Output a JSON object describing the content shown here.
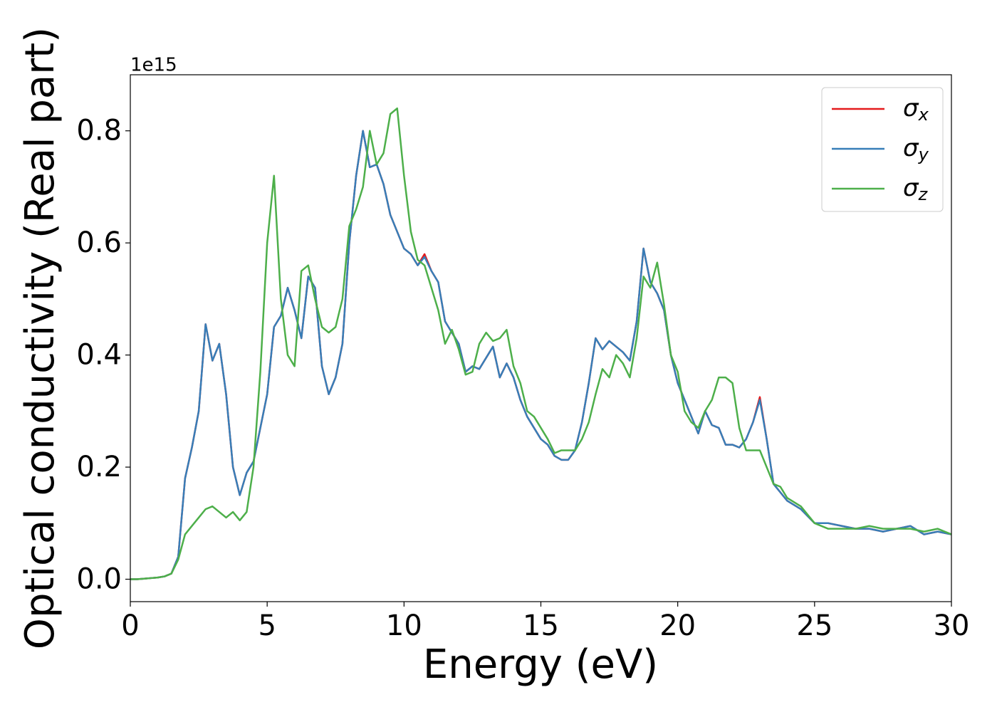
{
  "chart_data": {
    "type": "line",
    "xlabel": "Energy (eV)",
    "ylabel": "Optical conductivity (Real part)",
    "y_offset_label": "1e15",
    "xlim": [
      0,
      30
    ],
    "ylim": [
      -0.04,
      0.9
    ],
    "xticks": [
      0,
      5,
      10,
      15,
      20,
      25,
      30
    ],
    "yticks": [
      {
        "value": 0,
        "label": "0.0"
      },
      0.2,
      0.4,
      0.6,
      0.8
    ],
    "grid": false,
    "legend": "upper right",
    "x": [
      0,
      0.25,
      0.5,
      0.75,
      1,
      1.25,
      1.5,
      1.75,
      2,
      2.25,
      2.5,
      2.75,
      3,
      3.25,
      3.5,
      3.75,
      4,
      4.25,
      4.5,
      4.75,
      5,
      5.25,
      5.5,
      5.75,
      6,
      6.25,
      6.5,
      6.75,
      7,
      7.25,
      7.5,
      7.75,
      8,
      8.25,
      8.5,
      8.75,
      9,
      9.25,
      9.5,
      9.75,
      10,
      10.25,
      10.5,
      10.75,
      11,
      11.25,
      11.5,
      11.75,
      12,
      12.25,
      12.5,
      12.75,
      13,
      13.25,
      13.5,
      13.75,
      14,
      14.25,
      14.5,
      14.75,
      15,
      15.25,
      15.5,
      15.75,
      16,
      16.25,
      16.5,
      16.75,
      17,
      17.25,
      17.5,
      17.75,
      18,
      18.25,
      18.5,
      18.75,
      19,
      19.25,
      19.5,
      19.75,
      20,
      20.25,
      20.5,
      20.75,
      21,
      21.25,
      21.5,
      21.75,
      22,
      22.25,
      22.5,
      22.75,
      23,
      23.25,
      23.5,
      23.75,
      24,
      24.5,
      25,
      25.5,
      26,
      26.5,
      27,
      27.5,
      28,
      28.5,
      29,
      29.5,
      30
    ],
    "series": [
      {
        "name": "σx",
        "color": "#e41a1c",
        "values": [
          0,
          0,
          0.001,
          0.002,
          0.003,
          0.005,
          0.01,
          0.04,
          0.18,
          0.235,
          0.3,
          0.455,
          0.39,
          0.42,
          0.33,
          0.2,
          0.15,
          0.19,
          0.21,
          0.27,
          0.33,
          0.45,
          0.47,
          0.52,
          0.48,
          0.43,
          0.54,
          0.52,
          0.38,
          0.33,
          0.36,
          0.42,
          0.6,
          0.72,
          0.8,
          0.735,
          0.74,
          0.705,
          0.65,
          0.62,
          0.59,
          0.58,
          0.56,
          0.58,
          0.55,
          0.53,
          0.46,
          0.44,
          0.42,
          0.37,
          0.38,
          0.375,
          0.395,
          0.415,
          0.36,
          0.385,
          0.36,
          0.32,
          0.29,
          0.27,
          0.25,
          0.24,
          0.22,
          0.213,
          0.213,
          0.23,
          0.28,
          0.35,
          0.43,
          0.41,
          0.425,
          0.415,
          0.405,
          0.39,
          0.46,
          0.59,
          0.53,
          0.51,
          0.48,
          0.4,
          0.35,
          0.32,
          0.29,
          0.26,
          0.3,
          0.275,
          0.27,
          0.24,
          0.24,
          0.235,
          0.25,
          0.28,
          0.325,
          0.25,
          0.17,
          0.155,
          0.14,
          0.125,
          0.1,
          0.1,
          0.095,
          0.09,
          0.09,
          0.085,
          0.09,
          0.095,
          0.08,
          0.085,
          0.08
        ]
      },
      {
        "name": "σy",
        "color": "#377eb8",
        "values": [
          0,
          0,
          0.001,
          0.002,
          0.003,
          0.005,
          0.01,
          0.04,
          0.18,
          0.235,
          0.3,
          0.455,
          0.39,
          0.42,
          0.33,
          0.2,
          0.15,
          0.19,
          0.21,
          0.27,
          0.33,
          0.45,
          0.47,
          0.52,
          0.48,
          0.43,
          0.54,
          0.52,
          0.38,
          0.33,
          0.36,
          0.42,
          0.6,
          0.72,
          0.8,
          0.735,
          0.74,
          0.705,
          0.65,
          0.62,
          0.59,
          0.58,
          0.56,
          0.575,
          0.55,
          0.53,
          0.46,
          0.44,
          0.42,
          0.37,
          0.38,
          0.375,
          0.395,
          0.415,
          0.36,
          0.385,
          0.36,
          0.32,
          0.29,
          0.27,
          0.25,
          0.24,
          0.22,
          0.213,
          0.213,
          0.23,
          0.28,
          0.35,
          0.43,
          0.41,
          0.425,
          0.415,
          0.405,
          0.39,
          0.46,
          0.59,
          0.53,
          0.51,
          0.48,
          0.4,
          0.35,
          0.32,
          0.29,
          0.26,
          0.3,
          0.275,
          0.27,
          0.24,
          0.24,
          0.235,
          0.25,
          0.28,
          0.32,
          0.25,
          0.17,
          0.155,
          0.14,
          0.125,
          0.1,
          0.1,
          0.095,
          0.09,
          0.09,
          0.085,
          0.09,
          0.095,
          0.08,
          0.085,
          0.08
        ]
      },
      {
        "name": "σz",
        "color": "#4daf4a",
        "values": [
          0,
          0,
          0.001,
          0.002,
          0.003,
          0.005,
          0.01,
          0.035,
          0.08,
          0.095,
          0.11,
          0.125,
          0.13,
          0.12,
          0.11,
          0.12,
          0.105,
          0.12,
          0.2,
          0.37,
          0.6,
          0.72,
          0.5,
          0.4,
          0.38,
          0.55,
          0.56,
          0.5,
          0.45,
          0.44,
          0.45,
          0.5,
          0.63,
          0.66,
          0.7,
          0.8,
          0.74,
          0.76,
          0.83,
          0.84,
          0.72,
          0.62,
          0.57,
          0.56,
          0.52,
          0.48,
          0.42,
          0.445,
          0.41,
          0.365,
          0.37,
          0.42,
          0.44,
          0.425,
          0.43,
          0.445,
          0.38,
          0.35,
          0.3,
          0.29,
          0.27,
          0.25,
          0.225,
          0.23,
          0.23,
          0.23,
          0.25,
          0.28,
          0.33,
          0.375,
          0.36,
          0.4,
          0.385,
          0.36,
          0.43,
          0.54,
          0.52,
          0.565,
          0.49,
          0.4,
          0.37,
          0.3,
          0.28,
          0.27,
          0.3,
          0.32,
          0.36,
          0.36,
          0.35,
          0.27,
          0.23,
          0.23,
          0.23,
          0.2,
          0.17,
          0.165,
          0.145,
          0.13,
          0.1,
          0.09,
          0.09,
          0.09,
          0.095,
          0.09,
          0.09,
          0.09,
          0.085,
          0.09,
          0.08
        ]
      }
    ]
  }
}
